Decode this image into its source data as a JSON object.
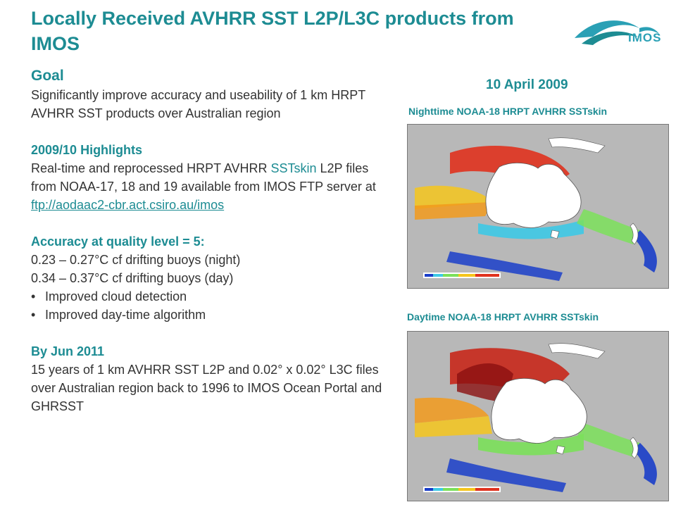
{
  "title": "Locally Received AVHRR SST L2P/L3C products from IMOS",
  "logo": {
    "text": "IMOS",
    "brand_color": "#2aa0b5"
  },
  "left": {
    "goal": {
      "heading": "Goal",
      "text": "Significantly improve accuracy and useability of 1 km HRPT AVHRR SST products over Australian region"
    },
    "highlights": {
      "heading": "2009/10 Highlights",
      "text_before": "Real-time and reprocessed HRPT AVHRR ",
      "text_highlight": "SSTskin",
      "text_after": " L2P files from NOAA-17, 18 and 19 available from IMOS FTP server at",
      "link": "ftp://aodaac2-cbr.act.csiro.au/imos"
    },
    "accuracy": {
      "heading": "Accuracy at quality level = 5:",
      "line1": "0.23 – 0.27°C cf drifting buoys (night)",
      "line2": "0.34 – 0.37°C cf drifting buoys (day)",
      "bullets": [
        "Improved cloud detection",
        "Improved day-time algorithm"
      ]
    },
    "by_2011": {
      "heading": "By Jun 2011",
      "text": "15 years of 1 km AVHRR SST L2P and 0.02° x 0.02° L3C files over Australian region back to 1996 to IMOS Ocean Portal and GHRSST"
    }
  },
  "right": {
    "date": "10 April 2009",
    "night_caption": "Nighttime NOAA-18 HRPT AVHRR SSTskin",
    "day_caption": "Daytime NOAA-18 HRPT AVHRR SSTskin"
  },
  "colors": {
    "accent": "#1d8c93",
    "text": "#333333",
    "land": "#ffffff",
    "nodata": "#b8b8b8"
  }
}
